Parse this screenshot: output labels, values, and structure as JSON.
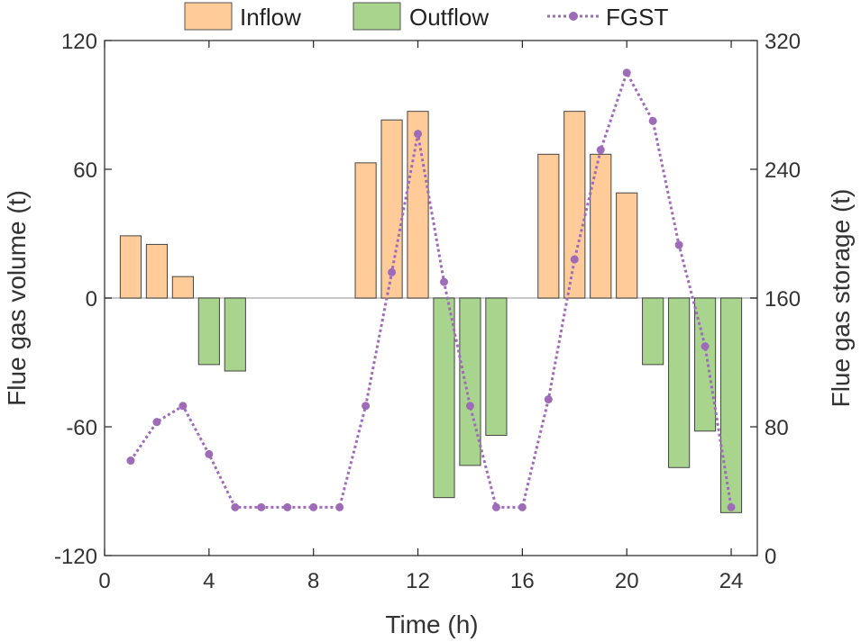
{
  "chart_data": {
    "type": "bar",
    "title": "",
    "xlabel": "Time (h)",
    "ylabel": "Flue gas volume (t)",
    "y2label": "Flue gas storage (t)",
    "x": [
      1,
      2,
      3,
      4,
      5,
      6,
      7,
      8,
      9,
      10,
      11,
      12,
      13,
      14,
      15,
      16,
      17,
      18,
      19,
      20,
      21,
      22,
      23,
      24
    ],
    "xlim": [
      0,
      25
    ],
    "ylim": [
      -120,
      120
    ],
    "y2lim": [
      0,
      320
    ],
    "xticks": [
      0,
      4,
      8,
      12,
      16,
      20,
      24
    ],
    "xtick_labels": [
      "0",
      "4",
      "8",
      "12",
      "16",
      "20",
      "24"
    ],
    "yticks": [
      -120,
      -60,
      0,
      60,
      120
    ],
    "ytick_labels": [
      "-120",
      "-60",
      "0",
      "60",
      "120"
    ],
    "y2ticks": [
      0,
      80,
      160,
      240,
      320
    ],
    "y2tick_labels": [
      "0",
      "80",
      "160",
      "240",
      "320"
    ],
    "legend_position": "top",
    "series": [
      {
        "name": "Inflow",
        "kind": "bar",
        "axis": "left",
        "color": "#FFCC99",
        "values": [
          29,
          25,
          10,
          0,
          0,
          0,
          0,
          0,
          0,
          63,
          83,
          87,
          0,
          0,
          0,
          0,
          67,
          87,
          67,
          49,
          0,
          0,
          0,
          0
        ]
      },
      {
        "name": "Outflow",
        "kind": "bar",
        "axis": "left",
        "color": "#A8D48E",
        "values": [
          0,
          0,
          0,
          -31,
          -34,
          0,
          0,
          0,
          0,
          0,
          0,
          0,
          -93,
          -78,
          -64,
          0,
          0,
          0,
          0,
          0,
          -31,
          -79,
          -62,
          -100
        ]
      },
      {
        "name": "FGST",
        "kind": "line",
        "axis": "right",
        "color": "#9E6BB8",
        "values": [
          59,
          83,
          93,
          63,
          30,
          30,
          30,
          30,
          30,
          93,
          176,
          262,
          170,
          93,
          30,
          30,
          97,
          184,
          252,
          300,
          270,
          193,
          130,
          30
        ]
      }
    ]
  }
}
